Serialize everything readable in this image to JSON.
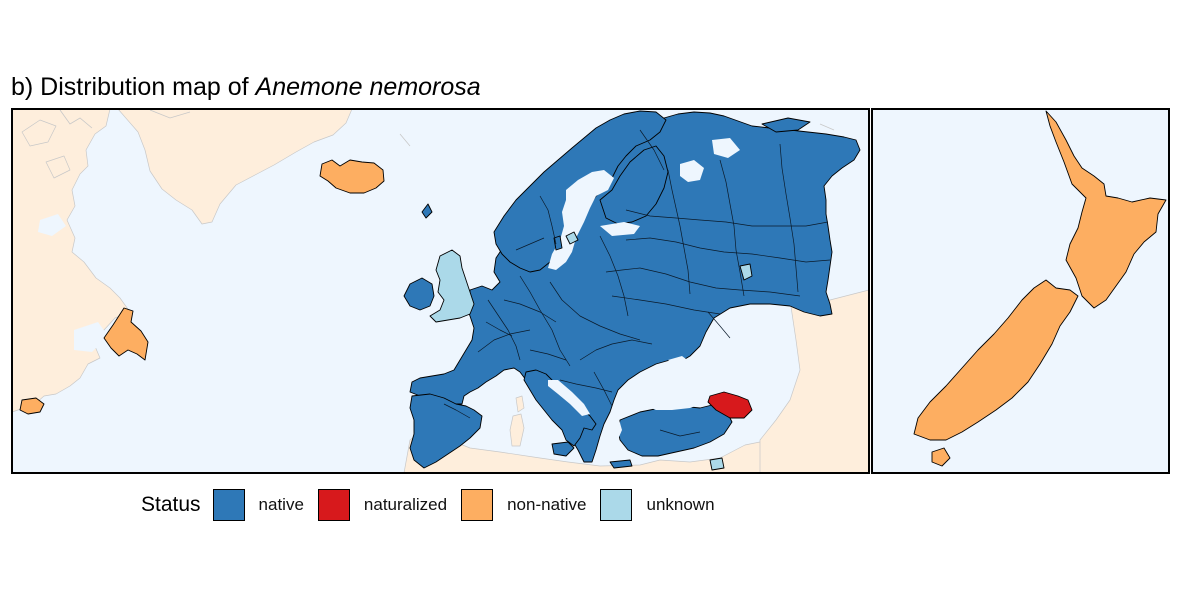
{
  "title": {
    "prefix": "b) Distribution map of ",
    "species": "Anemone nemorosa"
  },
  "legend": {
    "title": "Status",
    "items": [
      {
        "label": "native",
        "color": "#2E78B7"
      },
      {
        "label": "naturalized",
        "color": "#D7191C"
      },
      {
        "label": "non-native",
        "color": "#FDAE61"
      },
      {
        "label": "unknown",
        "color": "#ABD9E9"
      }
    ]
  },
  "colors": {
    "ocean": "#EEF6FE",
    "land_no_data": "#FEEEDC",
    "coast_outline": "#C8C8C8",
    "frame": "#000000"
  },
  "map_panels": [
    {
      "region": "North Atlantic and Europe"
    },
    {
      "region": "New Zealand"
    }
  ]
}
